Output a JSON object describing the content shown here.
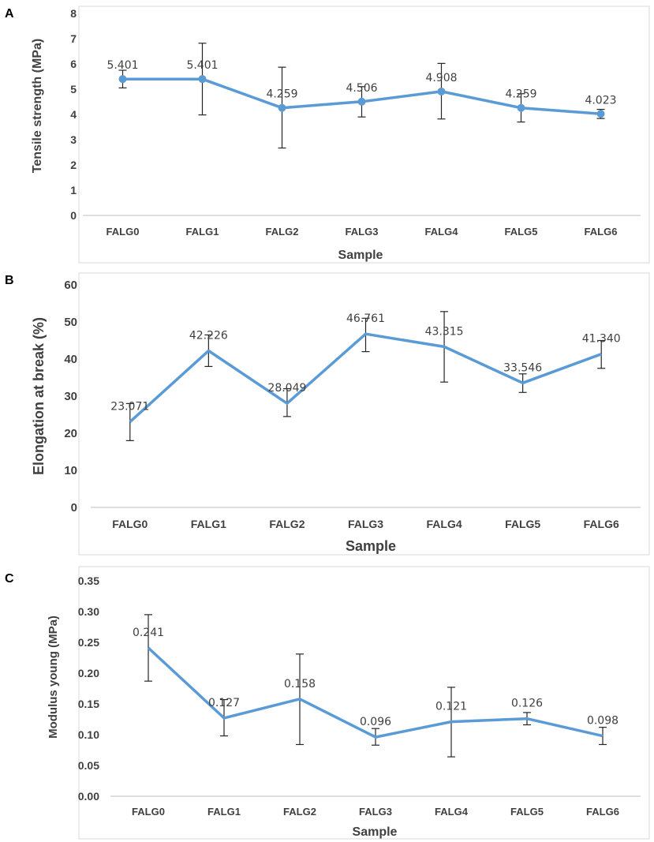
{
  "chart_data": [
    {
      "panel": "A",
      "type": "line",
      "categories": [
        "FALG0",
        "FALG1",
        "FALG2",
        "FALG3",
        "FALG4",
        "FALG5",
        "FALG6"
      ],
      "values": [
        5.401,
        5.401,
        4.259,
        4.506,
        4.908,
        4.259,
        4.023
      ],
      "data_labels": [
        "5.401",
        "5.401",
        "4.259",
        "4.506",
        "4.908",
        "4.259",
        "4.023"
      ],
      "error_low": [
        5.05,
        3.98,
        2.67,
        3.9,
        3.82,
        3.7,
        3.84
      ],
      "error_high": [
        5.75,
        6.82,
        5.87,
        5.1,
        6.02,
        4.82,
        4.2
      ],
      "markers": true,
      "xlabel": "Sample",
      "ylabel": "Tensile strength (MPa)",
      "ylim": [
        0,
        8
      ],
      "yticks": [
        0,
        1,
        2,
        3,
        4,
        5,
        6,
        7,
        8
      ],
      "ytick_labels": [
        "0",
        "1",
        "2",
        "3",
        "4",
        "5",
        "6",
        "7",
        "8"
      ],
      "grid": false,
      "color": "#5b9bd5"
    },
    {
      "panel": "B",
      "type": "line",
      "categories": [
        "FALG0",
        "FALG1",
        "FALG2",
        "FALG3",
        "FALG4",
        "FALG5",
        "FALG6"
      ],
      "values": [
        23.071,
        42.226,
        28.049,
        46.761,
        43.315,
        33.546,
        41.34
      ],
      "data_labels": [
        "23.071",
        "42.226",
        "28.049",
        "46.761",
        "43.315",
        "33.546",
        "41.340"
      ],
      "error_low": [
        18.0,
        38.0,
        24.5,
        42.0,
        33.8,
        31.0,
        37.5
      ],
      "error_high": [
        28.0,
        46.5,
        32.0,
        51.0,
        52.8,
        36.0,
        45.0
      ],
      "markers": false,
      "xlabel": "Sample",
      "ylabel": "Elongation at break (%)",
      "ylim": [
        0,
        60
      ],
      "yticks": [
        0,
        10,
        20,
        30,
        40,
        50,
        60
      ],
      "ytick_labels": [
        "0",
        "10",
        "20",
        "30",
        "40",
        "50",
        "60"
      ],
      "grid": false,
      "color": "#5b9bd5"
    },
    {
      "panel": "C",
      "type": "line",
      "categories": [
        "FALG0",
        "FALG1",
        "FALG2",
        "FALG3",
        "FALG4",
        "FALG5",
        "FALG6"
      ],
      "values": [
        0.241,
        0.127,
        0.158,
        0.096,
        0.121,
        0.126,
        0.098
      ],
      "data_labels": [
        "0.241",
        "0.127",
        "0.158",
        "0.096",
        "0.121",
        "0.126",
        "0.098"
      ],
      "error_low": [
        0.187,
        0.098,
        0.084,
        0.083,
        0.064,
        0.116,
        0.084
      ],
      "error_high": [
        0.295,
        0.157,
        0.231,
        0.11,
        0.177,
        0.136,
        0.112
      ],
      "markers": false,
      "xlabel": "Sample",
      "ylabel": "Modulus young (MPa)",
      "ylim": [
        0,
        0.35
      ],
      "yticks": [
        0,
        0.05,
        0.1,
        0.15,
        0.2,
        0.25,
        0.3,
        0.35
      ],
      "ytick_labels": [
        "0.00",
        "0.05",
        "0.10",
        "0.15",
        "0.20",
        "0.25",
        "0.30",
        "0.35"
      ],
      "grid": false,
      "color": "#5b9bd5"
    }
  ]
}
